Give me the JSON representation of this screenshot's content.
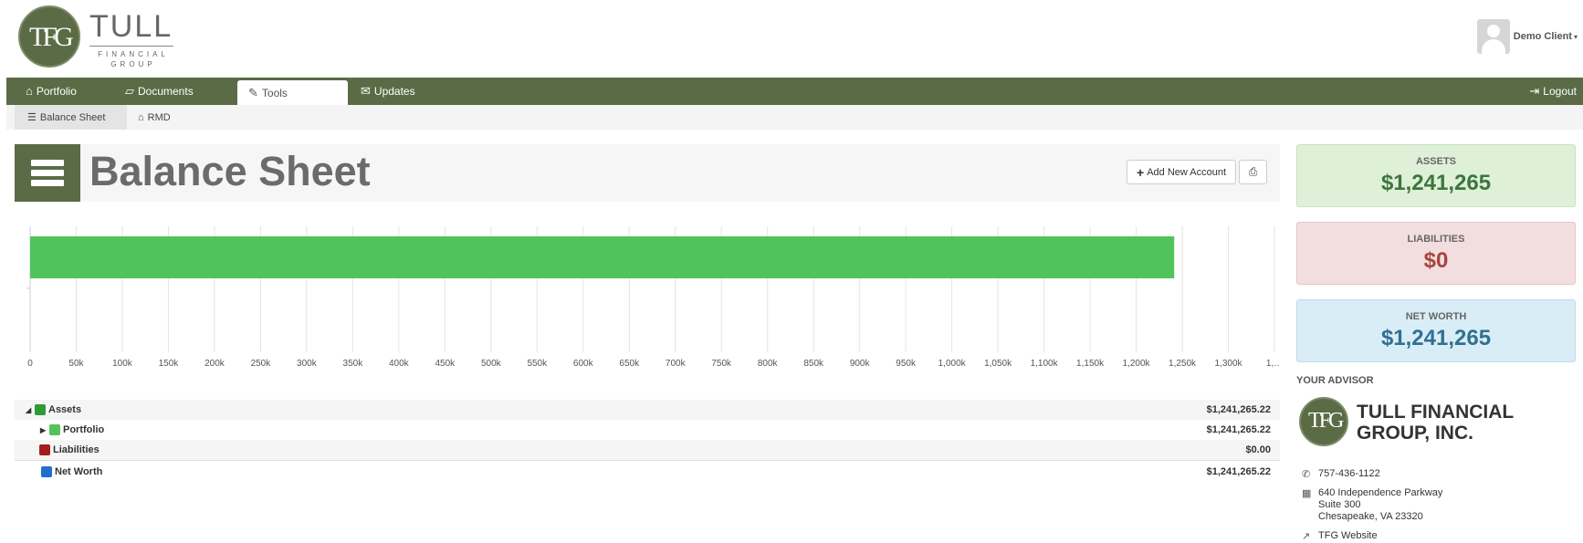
{
  "header": {
    "logo": {
      "monogram": "TFG",
      "word": "TULL",
      "sub_line1": "FINANCIAL",
      "sub_line2": "GROUP"
    },
    "user": {
      "name": "Demo Client",
      "caret": "▾"
    }
  },
  "nav": {
    "items": [
      {
        "label": "Portfolio",
        "icon": "home-icon"
      },
      {
        "label": "Documents",
        "icon": "folder-icon"
      },
      {
        "label": "Tools",
        "icon": "wrench-icon",
        "active": true
      },
      {
        "label": "Updates",
        "icon": "inbox-icon"
      }
    ],
    "logout": "Logout"
  },
  "subnav": {
    "items": [
      {
        "label": "Balance Sheet",
        "icon": "list-icon",
        "active": true
      },
      {
        "label": "RMD",
        "icon": "bank-icon"
      }
    ]
  },
  "page": {
    "title": "Balance Sheet",
    "add_account": "Add New Account",
    "print_icon": "print-icon"
  },
  "chart_data": {
    "type": "bar",
    "orientation": "horizontal",
    "categories": [
      "Assets",
      ""
    ],
    "series": [
      {
        "values": [
          1241265.22,
          0
        ],
        "color": "#52c35a"
      }
    ],
    "xlim": [
      0,
      1350000
    ],
    "x_ticks": [
      "0",
      "50k",
      "100k",
      "150k",
      "200k",
      "250k",
      "300k",
      "350k",
      "400k",
      "450k",
      "500k",
      "550k",
      "600k",
      "650k",
      "700k",
      "750k",
      "800k",
      "850k",
      "900k",
      "950k",
      "1,000k",
      "1,050k",
      "1,100k",
      "1,150k",
      "1,200k",
      "1,250k",
      "1,300k",
      "1,…"
    ],
    "grid": true
  },
  "table": {
    "rows": [
      {
        "toggle": "◢",
        "label": "Assets",
        "color": "#2e9b36",
        "amount": "$1,241,265.22"
      },
      {
        "toggle": "▶",
        "label": "Portfolio",
        "color": "#52c35a",
        "amount": "$1,241,265.22"
      },
      {
        "toggle": "",
        "label": "Liabilities",
        "color": "#a51c1c",
        "amount": "$0.00"
      },
      {
        "toggle": "",
        "label": "Net Worth",
        "color": "#1f6fcf",
        "amount": "$1,241,265.22"
      }
    ]
  },
  "summary": {
    "assets": {
      "label": "ASSETS",
      "value": "$1,241,265"
    },
    "liabilities": {
      "label": "LIABILITIES",
      "value": "$0"
    },
    "net_worth": {
      "label": "NET WORTH",
      "value": "$1,241,265"
    }
  },
  "advisor": {
    "section_title": "YOUR ADVISOR",
    "monogram": "TFG",
    "name": "TULL FINANCIAL GROUP, INC.",
    "phone": "757-436-1122",
    "address1": "640 Independence Parkway",
    "address2": "Suite 300",
    "address3": "Chesapeake, VA 23320",
    "website": "TFG Website"
  },
  "colors": {
    "brand": "#5a6b46",
    "assets_bg": "#dff0d8",
    "assets_text": "#3c763d",
    "liabilities_bg": "#f2dede",
    "liabilities_text": "#a94442",
    "networth_bg": "#d9edf7",
    "networth_text": "#31708f"
  }
}
